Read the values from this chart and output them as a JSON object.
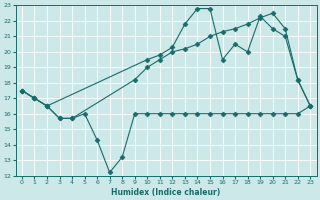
{
  "xlabel": "Humidex (Indice chaleur)",
  "xlim": [
    -0.5,
    23.5
  ],
  "ylim": [
    12,
    23
  ],
  "xticks": [
    0,
    1,
    2,
    3,
    4,
    5,
    6,
    7,
    8,
    9,
    10,
    11,
    12,
    13,
    14,
    15,
    16,
    17,
    18,
    19,
    20,
    21,
    22,
    23
  ],
  "yticks": [
    12,
    13,
    14,
    15,
    16,
    17,
    18,
    19,
    20,
    21,
    22,
    23
  ],
  "bg_color": "#cce8e8",
  "line_color": "#1a6b6b",
  "grid_color": "#ffffff",
  "line1_x": [
    0,
    1,
    2,
    3,
    4,
    5,
    6,
    7,
    8,
    9,
    10,
    11,
    12,
    13,
    14,
    15,
    16,
    17,
    18,
    19,
    20,
    21,
    22,
    23
  ],
  "line1_y": [
    17.5,
    17.0,
    16.5,
    15.7,
    15.7,
    16.0,
    14.3,
    12.2,
    13.2,
    16.0,
    16.0,
    16.0,
    16.0,
    16.0,
    16.0,
    16.0,
    16.0,
    16.0,
    16.0,
    16.0,
    16.0,
    16.0,
    16.0,
    16.5
  ],
  "line2_x": [
    0,
    1,
    2,
    10,
    11,
    12,
    13,
    14,
    15,
    16,
    17,
    18,
    19,
    20,
    21,
    22,
    23
  ],
  "line2_y": [
    17.5,
    17.0,
    16.5,
    19.5,
    19.8,
    20.3,
    21.8,
    22.8,
    22.8,
    19.5,
    20.5,
    20.0,
    22.3,
    21.5,
    21.0,
    18.2,
    16.5
  ],
  "line3_x": [
    0,
    1,
    2,
    3,
    4,
    9,
    10,
    11,
    12,
    13,
    14,
    15,
    16,
    17,
    18,
    19,
    20,
    21,
    22,
    23
  ],
  "line3_y": [
    17.5,
    17.0,
    16.5,
    15.7,
    15.7,
    18.2,
    19.0,
    19.5,
    20.0,
    20.2,
    20.5,
    21.0,
    21.3,
    21.5,
    21.8,
    22.2,
    22.5,
    21.5,
    18.2,
    16.5
  ],
  "marker": "D",
  "markersize": 2.5
}
